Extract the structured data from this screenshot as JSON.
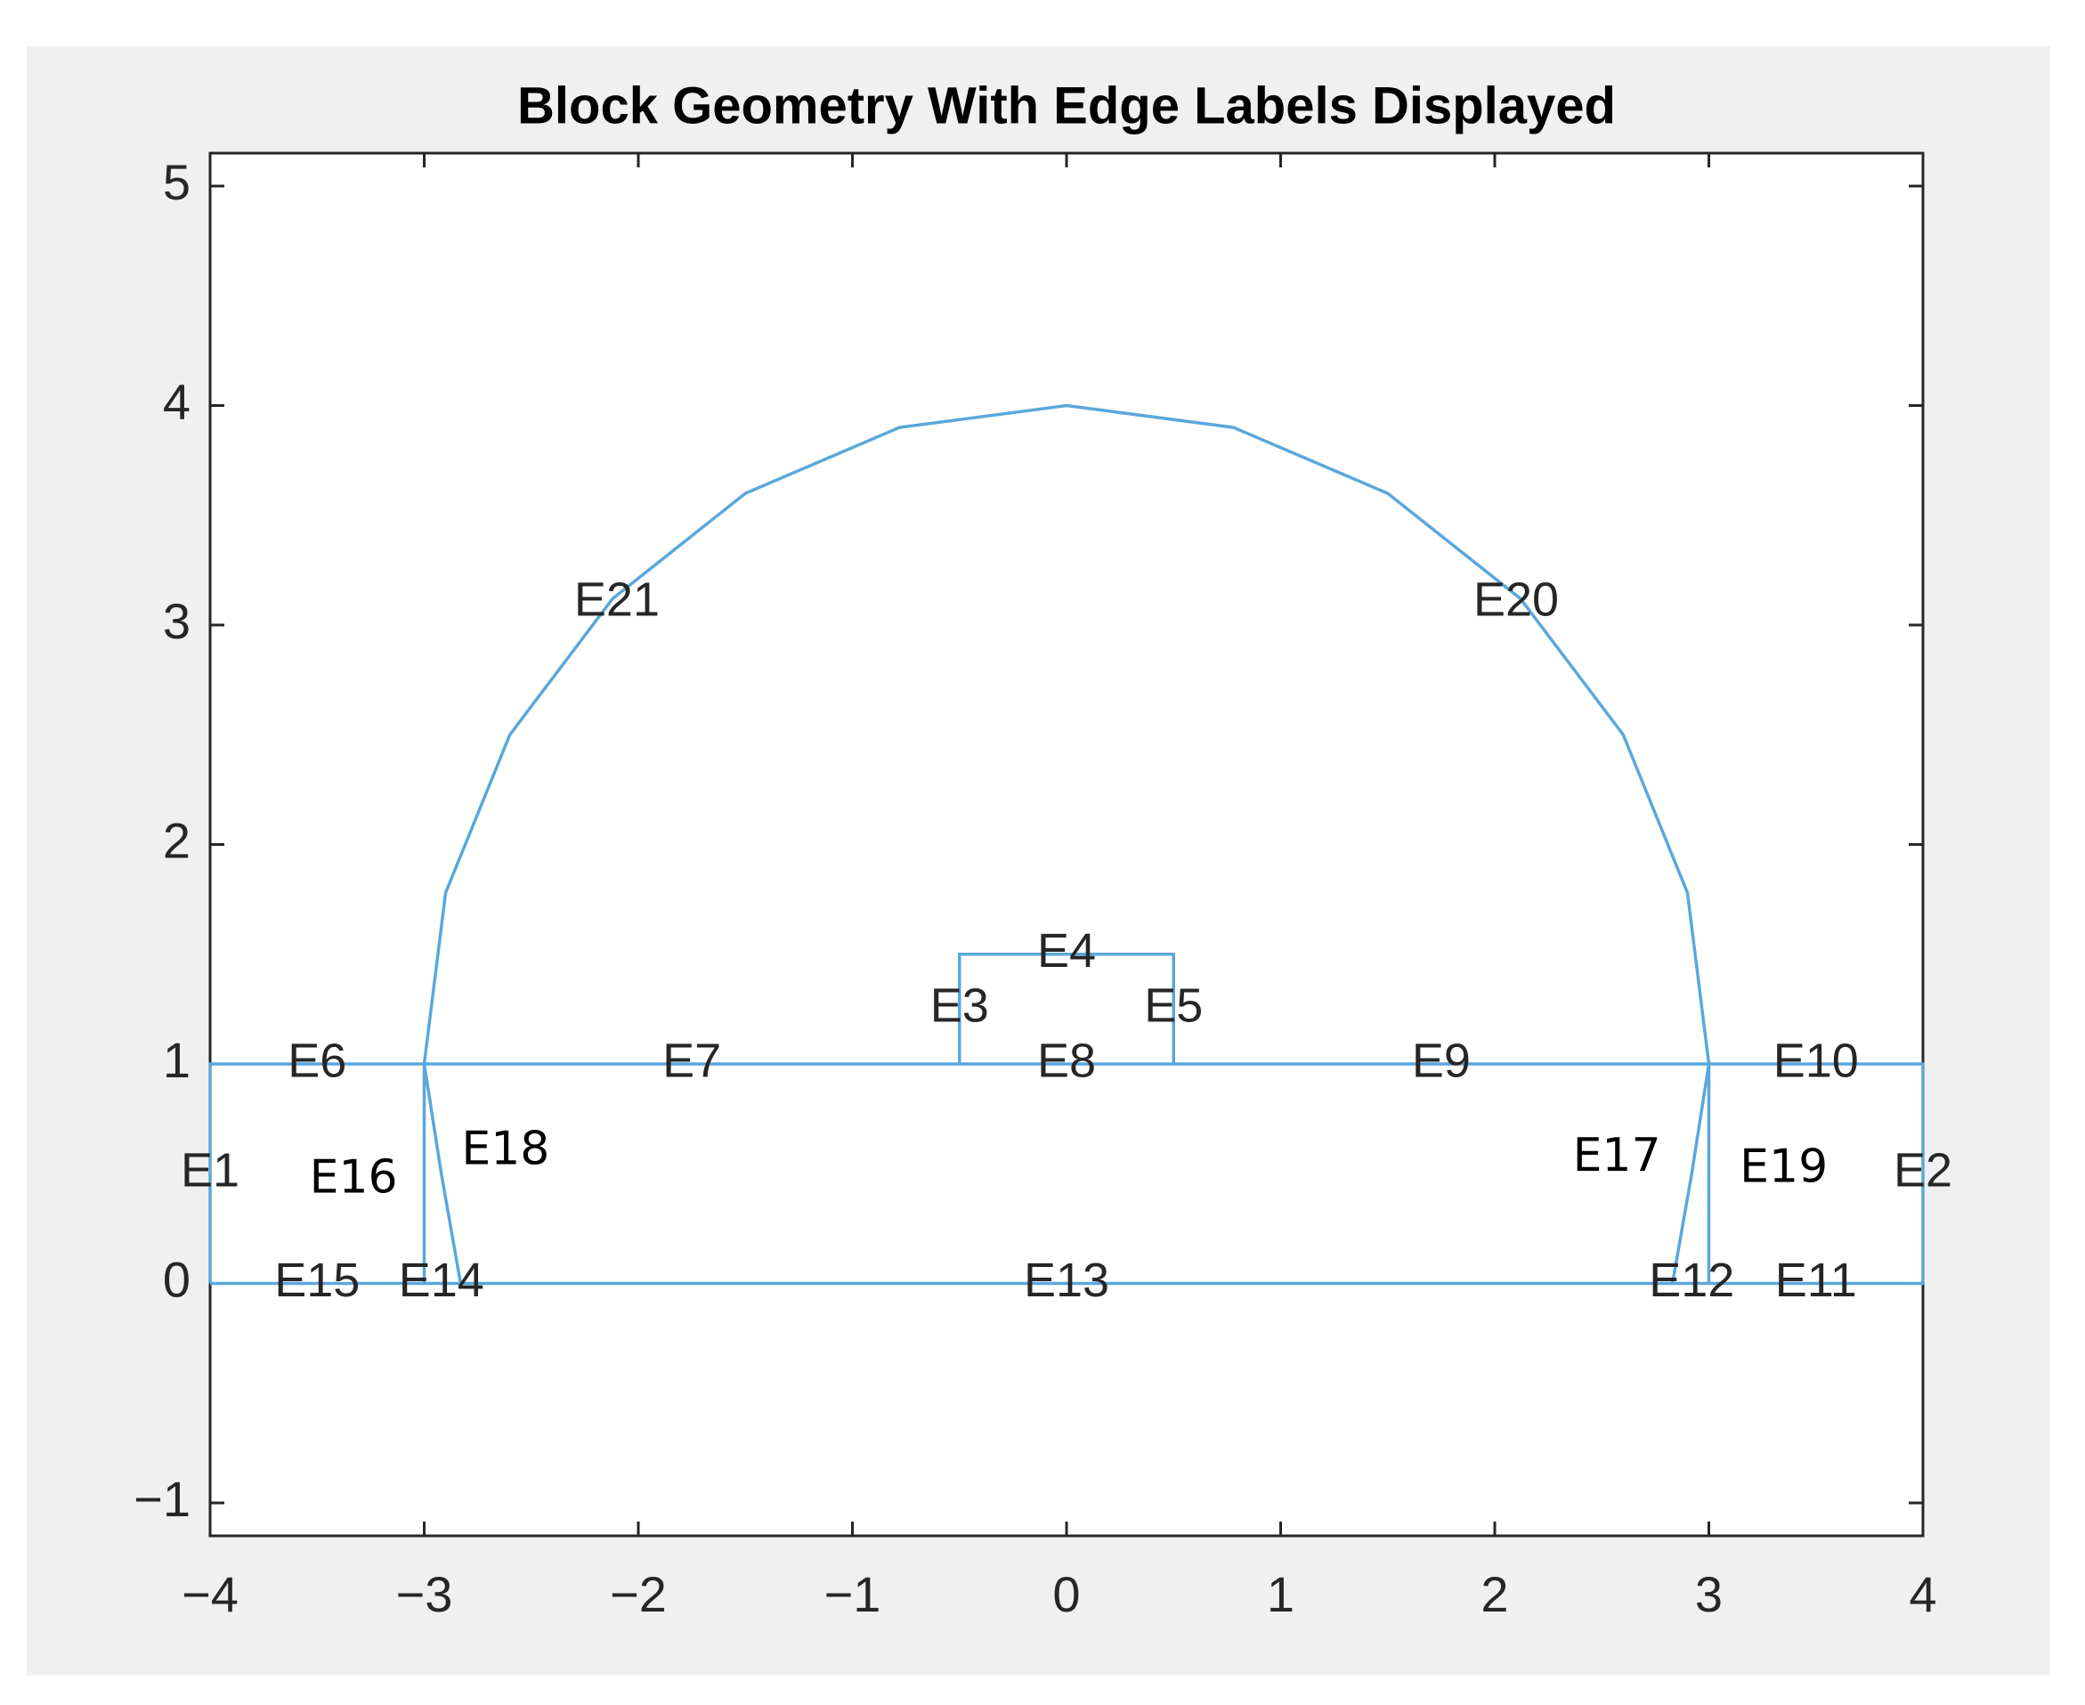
{
  "chart_data": {
    "type": "geometry",
    "title": "Block Geometry With Edge Labels Displayed",
    "xlim": [
      -4,
      4
    ],
    "ylim": [
      -1.15,
      5.15
    ],
    "xticks": [
      {
        "value": -4,
        "label": "−4"
      },
      {
        "value": -3,
        "label": "−3"
      },
      {
        "value": -2,
        "label": "−2"
      },
      {
        "value": -1,
        "label": "−1"
      },
      0,
      1,
      2,
      3,
      4
    ],
    "yticks": [
      {
        "value": -1,
        "label": "−1"
      },
      0,
      1,
      2,
      3,
      4,
      5
    ],
    "color": "#5aa7dc",
    "series": [
      {
        "x": [
          -4,
          4,
          4,
          -4,
          -4
        ],
        "y": [
          0,
          0,
          1,
          1,
          0
        ]
      },
      {
        "x": [
          -0.5,
          -0.5,
          0.5,
          0.5
        ],
        "y": [
          1,
          1.5,
          1.5,
          1
        ]
      },
      {
        "x": [
          -3,
          -3
        ],
        "y": [
          0,
          1
        ]
      },
      {
        "x": [
          3,
          3
        ],
        "y": [
          0,
          1
        ]
      },
      {
        "x": [
          -2.83,
          -2.92,
          -3,
          -2.9,
          -2.6,
          -2.12,
          -1.5,
          -0.78,
          0,
          0.78,
          1.5,
          2.12,
          2.6,
          2.9,
          3,
          2.92,
          2.83
        ],
        "y": [
          0,
          0.5,
          1,
          1.78,
          2.5,
          3.12,
          3.6,
          3.9,
          4,
          3.9,
          3.6,
          3.12,
          2.5,
          1.78,
          1,
          0.5,
          0
        ]
      }
    ],
    "edge_labels": [
      {
        "label": "E1",
        "x": -4,
        "y": 0.5
      },
      {
        "label": "E2",
        "x": 4,
        "y": 0.5
      },
      {
        "label": "E3",
        "x": -0.5,
        "y": 1.25
      },
      {
        "label": "E4",
        "x": 0,
        "y": 1.5
      },
      {
        "label": "E5",
        "x": 0.5,
        "y": 1.25
      },
      {
        "label": "E6",
        "x": -3.5,
        "y": 1
      },
      {
        "label": "E7",
        "x": -1.75,
        "y": 1
      },
      {
        "label": "E8",
        "x": 0,
        "y": 1
      },
      {
        "label": "E9",
        "x": 1.75,
        "y": 1
      },
      {
        "label": "E10",
        "x": 3.5,
        "y": 1
      },
      {
        "label": "E11",
        "x": 3.5,
        "y": 0
      },
      {
        "label": "E12",
        "x": 2.92,
        "y": 0
      },
      {
        "label": "E13",
        "x": 0,
        "y": 0
      },
      {
        "label": "E14",
        "x": -2.92,
        "y": 0
      },
      {
        "label": "E15",
        "x": -3.5,
        "y": 0
      },
      {
        "label": "E16",
        "x": -3.33,
        "y": 0.47
      },
      {
        "label": "E17",
        "x": 2.57,
        "y": 0.57
      },
      {
        "label": "E18",
        "x": -2.62,
        "y": 0.6
      },
      {
        "label": "E19",
        "x": 3.35,
        "y": 0.52
      },
      {
        "label": "E20",
        "x": 2.1,
        "y": 3.1
      },
      {
        "label": "E21",
        "x": -2.1,
        "y": 3.1
      }
    ]
  }
}
